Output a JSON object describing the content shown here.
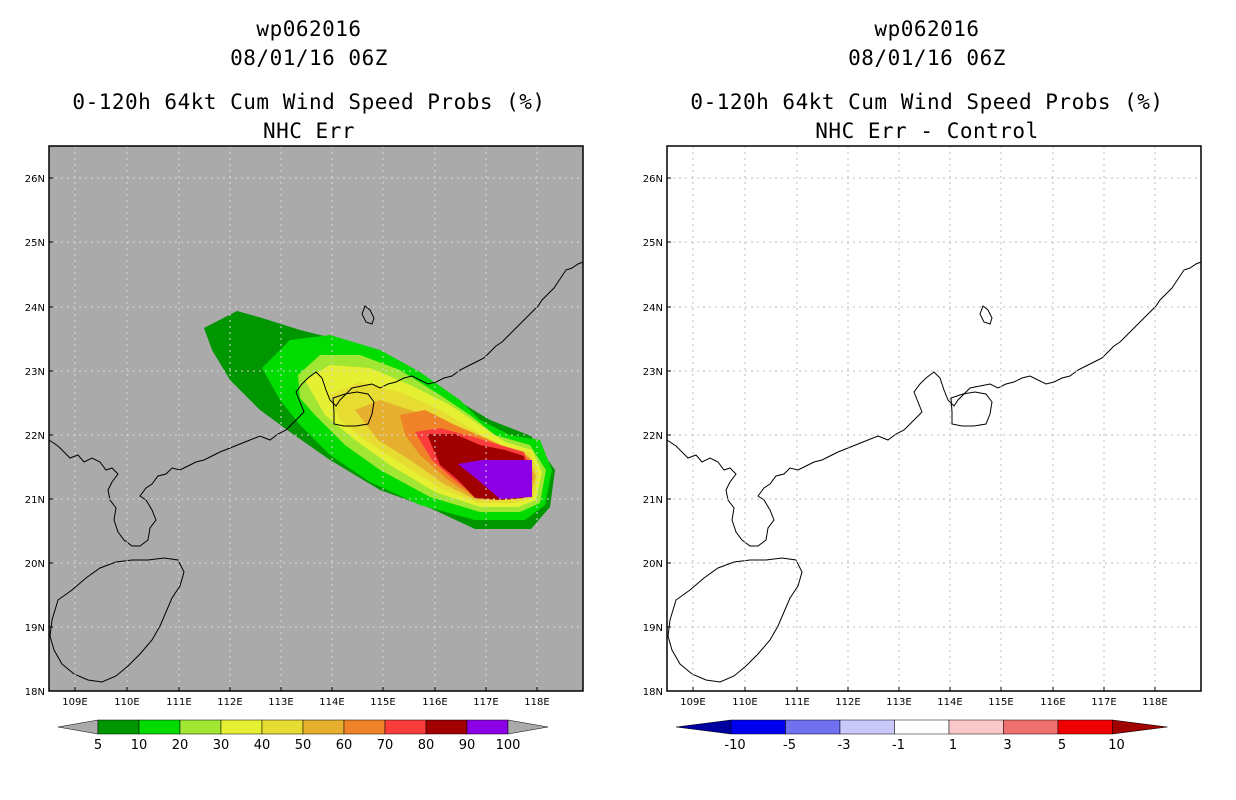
{
  "left_panel": {
    "storm_id": "wp062016",
    "datetime": "08/01/16 06Z",
    "product": "0-120h 64kt Cum Wind Speed Probs (%)",
    "subtitle": "NHC Err",
    "background_color": "#aaaaaa",
    "colorbar_labels": [
      "5",
      "10",
      "20",
      "30",
      "40",
      "50",
      "60",
      "70",
      "80",
      "90",
      "100"
    ],
    "colorbar_colors": [
      "#009600",
      "#00dc00",
      "#a0e632",
      "#e6f032",
      "#e6dc32",
      "#e6af2d",
      "#f08228",
      "#fa3c3c",
      "#a00000",
      "#8c00e6"
    ]
  },
  "right_panel": {
    "storm_id": "wp062016",
    "datetime": "08/01/16 06Z",
    "product": "0-120h 64kt Cum Wind Speed Probs (%)",
    "subtitle": "NHC Err - Control",
    "background_color": "#ffffff",
    "colorbar_labels": [
      "-10",
      "-5",
      "-3",
      "-1",
      "1",
      "3",
      "5",
      "10"
    ],
    "colorbar_colors": [
      "#0000a0",
      "#0000f0",
      "#7070f0",
      "#c8c8fa",
      "#ffffff",
      "#fac8c8",
      "#f07070",
      "#f00000",
      "#a00000"
    ]
  },
  "map": {
    "lon_labels": [
      "109E",
      "110E",
      "111E",
      "112E",
      "113E",
      "114E",
      "115E",
      "116E",
      "117E",
      "118E"
    ],
    "lat_labels": [
      "18N",
      "19N",
      "20N",
      "21N",
      "22N",
      "23N",
      "24N",
      "25N",
      "26N"
    ]
  }
}
